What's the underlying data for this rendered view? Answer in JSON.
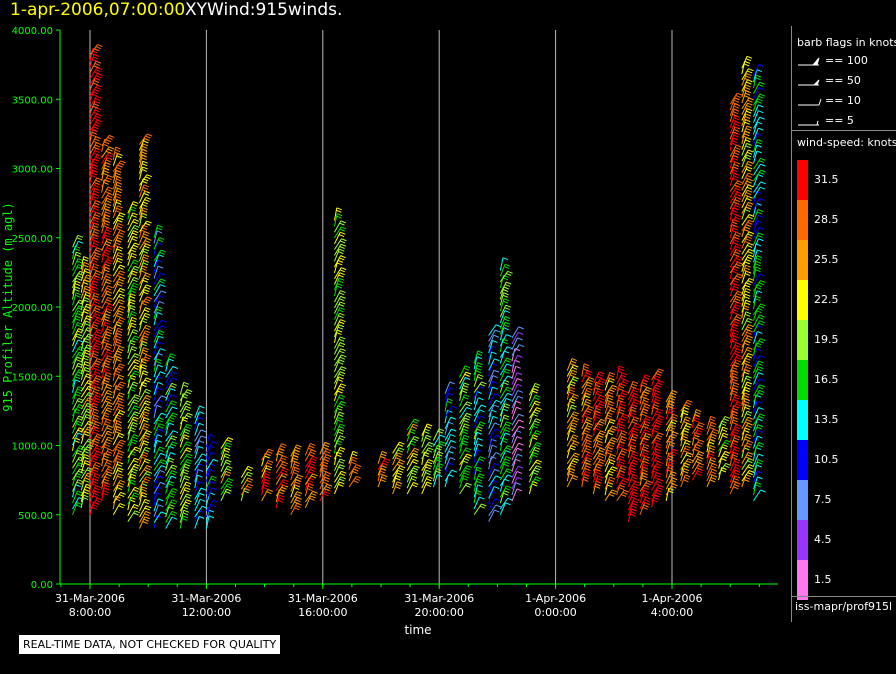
{
  "header": {
    "datetime": "1-apr-2006,07:00:00",
    "product": "XYWind:915winds."
  },
  "chart_data": {
    "type": "scatter",
    "title": "XYWind:915winds.",
    "xlabel": "time",
    "ylabel": "915 Profiler Altitude (m agl)",
    "ylim": [
      0,
      4000
    ],
    "xlim_hours_from_0800": [
      -0.8,
      24.9
    ],
    "y_ticks": [
      "0.00",
      "500.00",
      "1000.00",
      "1500.00",
      "2000.00",
      "2500.00",
      "3000.00",
      "3500.00",
      "4000.00"
    ],
    "x_ticks": [
      {
        "date": "31-Mar-2006",
        "time": "8:00:00",
        "hour": 0
      },
      {
        "date": "31-Mar-2006",
        "time": "12:00:00",
        "hour": 4
      },
      {
        "date": "31-Mar-2006",
        "time": "16:00:00",
        "hour": 8
      },
      {
        "date": "31-Mar-2006",
        "time": "20:00:00",
        "hour": 12
      },
      {
        "date": "1-Apr-2006",
        "time": "0:00:00",
        "hour": 16
      },
      {
        "date": "1-Apr-2006",
        "time": "4:00:00",
        "hour": 20
      }
    ],
    "grid": "vertical lines at major x ticks",
    "legend_placement": "right",
    "note_series": "wind barbs colored by wind speed (knots)",
    "barb_columns": [
      {
        "hour": -0.6,
        "alt_min": 500,
        "alt_max": 2450,
        "speed": 18
      },
      {
        "hour": -0.3,
        "alt_min": 550,
        "alt_max": 2300,
        "speed": 22
      },
      {
        "hour": 0.0,
        "alt_min": 500,
        "alt_max": 3850,
        "speed": 31
      },
      {
        "hour": 0.4,
        "alt_min": 600,
        "alt_max": 3200,
        "speed": 28
      },
      {
        "hour": 0.8,
        "alt_min": 500,
        "alt_max": 3100,
        "speed": 26
      },
      {
        "hour": 1.3,
        "alt_min": 450,
        "alt_max": 2700,
        "speed": 20
      },
      {
        "hour": 1.7,
        "alt_min": 400,
        "alt_max": 3200,
        "speed": 24
      },
      {
        "hour": 2.2,
        "alt_min": 400,
        "alt_max": 2500,
        "speed": 12
      },
      {
        "hour": 2.6,
        "alt_min": 400,
        "alt_max": 1600,
        "speed": 15
      },
      {
        "hour": 3.1,
        "alt_min": 400,
        "alt_max": 1400,
        "speed": 19
      },
      {
        "hour": 3.6,
        "alt_min": 400,
        "alt_max": 1200,
        "speed": 11
      },
      {
        "hour": 4.0,
        "alt_min": 400,
        "alt_max": 1000,
        "speed": 13
      },
      {
        "hour": 4.5,
        "alt_min": 600,
        "alt_max": 1000,
        "speed": 21
      },
      {
        "hour": 5.2,
        "alt_min": 600,
        "alt_max": 800,
        "speed": 24
      },
      {
        "hour": 5.9,
        "alt_min": 600,
        "alt_max": 900,
        "speed": 27
      },
      {
        "hour": 6.4,
        "alt_min": 550,
        "alt_max": 950,
        "speed": 28
      },
      {
        "hour": 6.9,
        "alt_min": 500,
        "alt_max": 950,
        "speed": 27
      },
      {
        "hour": 7.4,
        "alt_min": 550,
        "alt_max": 950,
        "speed": 28
      },
      {
        "hour": 7.9,
        "alt_min": 600,
        "alt_max": 950,
        "speed": 29
      },
      {
        "hour": 8.4,
        "alt_min": 650,
        "alt_max": 2650,
        "speed": 20
      },
      {
        "hour": 8.9,
        "alt_min": 700,
        "alt_max": 900,
        "speed": 27
      },
      {
        "hour": 9.9,
        "alt_min": 700,
        "alt_max": 900,
        "speed": 29
      },
      {
        "hour": 10.4,
        "alt_min": 650,
        "alt_max": 950,
        "speed": 23
      },
      {
        "hour": 10.9,
        "alt_min": 650,
        "alt_max": 1150,
        "speed": 21
      },
      {
        "hour": 11.4,
        "alt_min": 650,
        "alt_max": 1100,
        "speed": 19
      },
      {
        "hour": 11.8,
        "alt_min": 700,
        "alt_max": 1050,
        "speed": 17
      },
      {
        "hour": 12.2,
        "alt_min": 700,
        "alt_max": 1400,
        "speed": 12
      },
      {
        "hour": 12.7,
        "alt_min": 650,
        "alt_max": 1500,
        "speed": 18
      },
      {
        "hour": 13.2,
        "alt_min": 500,
        "alt_max": 1600,
        "speed": 15
      },
      {
        "hour": 13.7,
        "alt_min": 450,
        "alt_max": 1800,
        "speed": 10
      },
      {
        "hour": 14.1,
        "alt_min": 500,
        "alt_max": 2300,
        "speed": 16
      },
      {
        "hour": 14.5,
        "alt_min": 600,
        "alt_max": 1800,
        "speed": 5
      },
      {
        "hour": 15.1,
        "alt_min": 650,
        "alt_max": 1400,
        "speed": 19
      },
      {
        "hour": 16.4,
        "alt_min": 700,
        "alt_max": 1550,
        "speed": 24
      },
      {
        "hour": 16.9,
        "alt_min": 700,
        "alt_max": 1500,
        "speed": 27
      },
      {
        "hour": 17.3,
        "alt_min": 650,
        "alt_max": 1450,
        "speed": 29
      },
      {
        "hour": 17.7,
        "alt_min": 600,
        "alt_max": 1450,
        "speed": 26
      },
      {
        "hour": 18.1,
        "alt_min": 600,
        "alt_max": 1500,
        "speed": 31
      },
      {
        "hour": 18.5,
        "alt_min": 450,
        "alt_max": 1400,
        "speed": 32
      },
      {
        "hour": 18.9,
        "alt_min": 500,
        "alt_max": 1450,
        "speed": 30
      },
      {
        "hour": 19.3,
        "alt_min": 550,
        "alt_max": 1500,
        "speed": 33
      },
      {
        "hour": 19.8,
        "alt_min": 600,
        "alt_max": 1350,
        "speed": 27
      },
      {
        "hour": 20.3,
        "alt_min": 700,
        "alt_max": 1250,
        "speed": 24
      },
      {
        "hour": 20.7,
        "alt_min": 750,
        "alt_max": 1200,
        "speed": 29
      },
      {
        "hour": 21.2,
        "alt_min": 700,
        "alt_max": 1150,
        "speed": 27
      },
      {
        "hour": 21.6,
        "alt_min": 750,
        "alt_max": 1150,
        "speed": 21
      },
      {
        "hour": 22.0,
        "alt_min": 650,
        "alt_max": 3500,
        "speed": 31
      },
      {
        "hour": 22.4,
        "alt_min": 700,
        "alt_max": 3750,
        "speed": 24
      },
      {
        "hour": 22.8,
        "alt_min": 600,
        "alt_max": 3700,
        "speed": 14
      }
    ]
  },
  "legend": {
    "flags_title": "barb flags in knots",
    "flags": [
      "== 100",
      "== 50",
      "== 10",
      "== 5"
    ],
    "speed_title": "wind-speed: knots",
    "colorbar": [
      {
        "label": "31.5",
        "color": "#ff0000"
      },
      {
        "label": "28.5",
        "color": "#ff6a00"
      },
      {
        "label": "25.5",
        "color": "#ff9d00"
      },
      {
        "label": "22.5",
        "color": "#ffff00"
      },
      {
        "label": "19.5",
        "color": "#99ff33"
      },
      {
        "label": "16.5",
        "color": "#00dd00"
      },
      {
        "label": "13.5",
        "color": "#00ffff"
      },
      {
        "label": "10.5",
        "color": "#0000ff"
      },
      {
        "label": "7.5",
        "color": "#6699ff"
      },
      {
        "label": "4.5",
        "color": "#9933ff"
      },
      {
        "label": "1.5",
        "color": "#ff77ee"
      }
    ]
  },
  "footer": {
    "source": "iss-mapr/prof915l",
    "qc_notice": "REAL-TIME DATA, NOT CHECKED FOR QUALITY"
  }
}
